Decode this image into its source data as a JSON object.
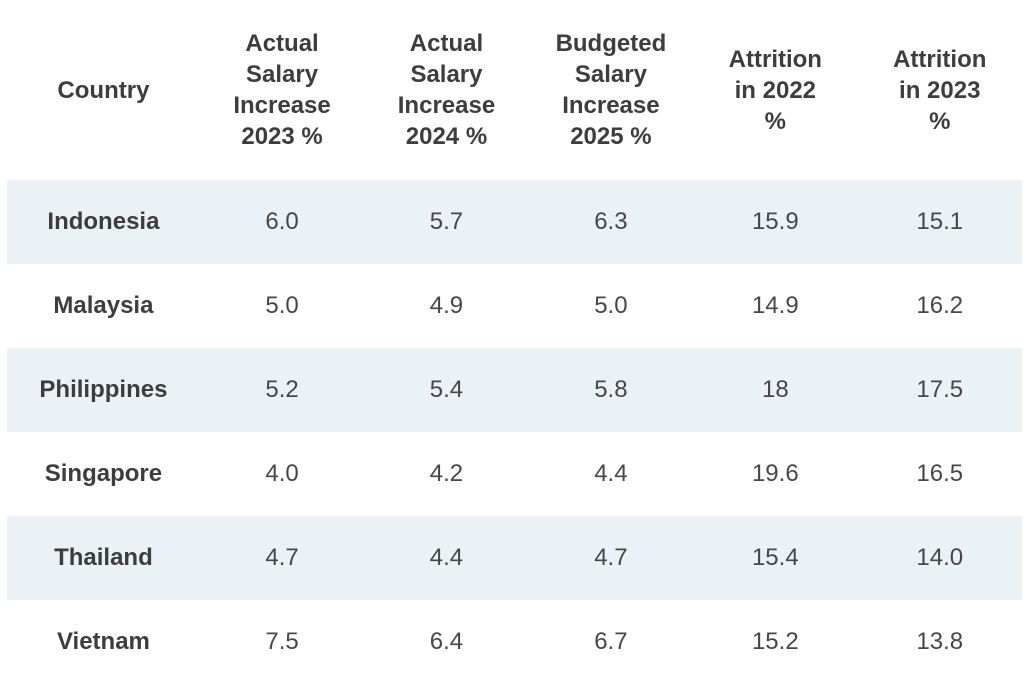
{
  "colors": {
    "row_shade": "#eaf2f6",
    "header_text": "#3d3d3d",
    "number_text": "#474747",
    "background": "#ffffff"
  },
  "table": {
    "columns": [
      {
        "label": "Country"
      },
      {
        "label": "Actual\nSalary\nIncrease\n2023 %"
      },
      {
        "label": "Actual\nSalary\nIncrease\n2024 %"
      },
      {
        "label": "Budgeted\nSalary\nIncrease\n2025 %"
      },
      {
        "label": "Attrition\nin 2022\n%"
      },
      {
        "label": "Attrition\nin 2023\n%"
      }
    ],
    "rows": [
      {
        "country": "Indonesia",
        "values": [
          "6.0",
          "5.7",
          "6.3",
          "15.9",
          "15.1"
        ]
      },
      {
        "country": "Malaysia",
        "values": [
          "5.0",
          "4.9",
          "5.0",
          "14.9",
          "16.2"
        ]
      },
      {
        "country": "Philippines",
        "values": [
          "5.2",
          "5.4",
          "5.8",
          "18",
          "17.5"
        ]
      },
      {
        "country": "Singapore",
        "values": [
          "4.0",
          "4.2",
          "4.4",
          "19.6",
          "16.5"
        ]
      },
      {
        "country": "Thailand",
        "values": [
          "4.7",
          "4.4",
          "4.7",
          "15.4",
          "14.0"
        ]
      },
      {
        "country": "Vietnam",
        "values": [
          "7.5",
          "6.4",
          "6.7",
          "15.2",
          "13.8"
        ]
      }
    ]
  },
  "chart_data": {
    "type": "table",
    "title": "",
    "columns": [
      "Country",
      "Actual Salary Increase 2023 %",
      "Actual Salary Increase 2024 %",
      "Budgeted Salary Increase 2025 %",
      "Attrition in 2022 %",
      "Attrition in 2023 %"
    ],
    "rows": [
      [
        "Indonesia",
        6.0,
        5.7,
        6.3,
        15.9,
        15.1
      ],
      [
        "Malaysia",
        5.0,
        4.9,
        5.0,
        14.9,
        16.2
      ],
      [
        "Philippines",
        5.2,
        5.4,
        5.8,
        18.0,
        17.5
      ],
      [
        "Singapore",
        4.0,
        4.2,
        4.4,
        19.6,
        16.5
      ],
      [
        "Thailand",
        4.7,
        4.4,
        4.7,
        15.4,
        14.0
      ],
      [
        "Vietnam",
        7.5,
        6.4,
        6.7,
        15.2,
        13.8
      ]
    ],
    "layout": {
      "header_background": "#ffffff",
      "zebra_striping": "odd rows shaded light blue starting with first data row",
      "grid": false
    }
  }
}
